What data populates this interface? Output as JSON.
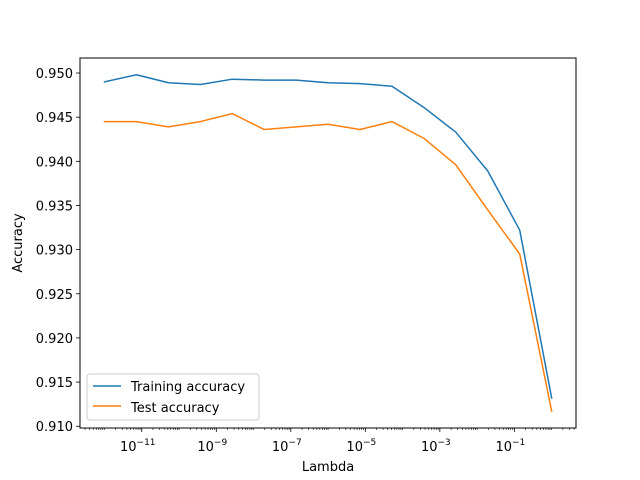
{
  "chart_data": {
    "type": "line",
    "xscale": "log",
    "x": [
      1e-12,
      7.2e-12,
      5.18e-11,
      3.73e-10,
      2.68e-09,
      1.93e-08,
      1.39e-07,
      1e-06,
      7.2e-06,
      5.18e-05,
      0.000373,
      0.00268,
      0.0193,
      0.139,
      1.0
    ],
    "series": [
      {
        "name": "Training accuracy",
        "color": "#1f77b4",
        "values": [
          0.949,
          0.9498,
          0.9489,
          0.9487,
          0.9493,
          0.9492,
          0.9492,
          0.9489,
          0.9488,
          0.9485,
          0.9461,
          0.9433,
          0.9389,
          0.9322,
          0.9132
        ]
      },
      {
        "name": "Test accuracy",
        "color": "#ff7f0e",
        "values": [
          0.9445,
          0.9445,
          0.9439,
          0.9445,
          0.9454,
          0.9436,
          0.9439,
          0.9442,
          0.9436,
          0.9445,
          0.9426,
          0.9396,
          0.9345,
          0.9295,
          0.9117
        ]
      }
    ],
    "xlabel": "Lambda",
    "ylabel": "Accuracy",
    "xlim": [
      2.2e-13,
      4.5
    ],
    "ylim": [
      0.9098,
      0.9517
    ],
    "x_ticks": [
      {
        "value": 1e-11,
        "base": "10",
        "exp": "−11"
      },
      {
        "value": 1e-09,
        "base": "10",
        "exp": "−9"
      },
      {
        "value": 1e-07,
        "base": "10",
        "exp": "−7"
      },
      {
        "value": 1e-05,
        "base": "10",
        "exp": "−5"
      },
      {
        "value": 0.001,
        "base": "10",
        "exp": "−3"
      },
      {
        "value": 0.1,
        "base": "10",
        "exp": "−1"
      }
    ],
    "y_ticks": [
      {
        "value": 0.91,
        "label": "0.910"
      },
      {
        "value": 0.915,
        "label": "0.915"
      },
      {
        "value": 0.92,
        "label": "0.920"
      },
      {
        "value": 0.925,
        "label": "0.925"
      },
      {
        "value": 0.93,
        "label": "0.930"
      },
      {
        "value": 0.935,
        "label": "0.935"
      },
      {
        "value": 0.94,
        "label": "0.940"
      },
      {
        "value": 0.945,
        "label": "0.945"
      },
      {
        "value": 0.95,
        "label": "0.950"
      }
    ],
    "grid": false,
    "legend_position": "lower-left"
  }
}
